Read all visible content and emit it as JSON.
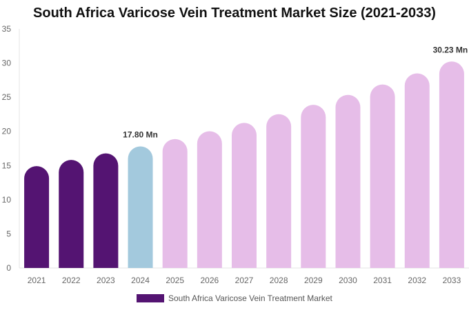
{
  "chart_data": {
    "type": "bar",
    "title": "South Africa Varicose Vein Treatment Market Size (2021-2033)",
    "categories": [
      "2021",
      "2022",
      "2023",
      "2024",
      "2025",
      "2026",
      "2027",
      "2028",
      "2029",
      "2030",
      "2031",
      "2032",
      "2033"
    ],
    "series": [
      {
        "name": "South Africa Varicose Vein Treatment Market",
        "values": [
          14.92,
          15.82,
          16.78,
          17.8,
          18.88,
          20.02,
          21.24,
          22.52,
          23.89,
          25.34,
          26.87,
          28.5,
          30.23
        ]
      }
    ],
    "data_labels": {
      "3": "17.80 Mn",
      "12": "30.23 Mn"
    },
    "ylim": [
      0,
      35
    ],
    "yticks": [
      0,
      5,
      10,
      15,
      20,
      25,
      30,
      35
    ],
    "grid": false,
    "legend": "bottom",
    "colors": {
      "historical": "#541472",
      "base_year": "#a3c9dd",
      "forecast": "#e6bde8"
    }
  }
}
